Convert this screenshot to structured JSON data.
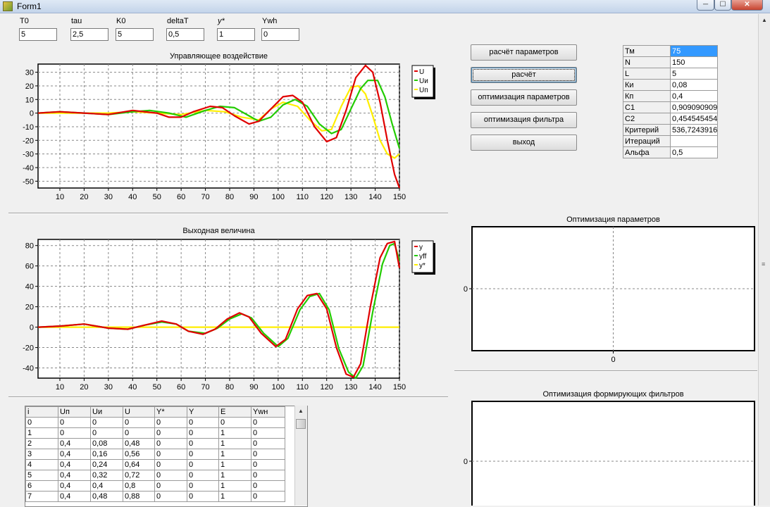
{
  "window": {
    "title": "Form1",
    "min": "─",
    "max": "☐",
    "close": "✕"
  },
  "params": [
    {
      "label": "T0",
      "value": "5"
    },
    {
      "label": "tau",
      "value": "2,5"
    },
    {
      "label": "K0",
      "value": "5"
    },
    {
      "label": "deltaT",
      "value": "0,5"
    },
    {
      "label": "y*",
      "value": "1"
    },
    {
      "label": "Ywh",
      "value": "0"
    }
  ],
  "buttons": {
    "calc_params": "расчёт параметров",
    "calc": "расчёт",
    "optimize_params": "оптимизация параметров",
    "optimize_filter": "оптимизация фильтра",
    "exit": "выход"
  },
  "param_table": [
    {
      "key": "Тм",
      "value": "75"
    },
    {
      "key": "N",
      "value": "150"
    },
    {
      "key": "L",
      "value": "5"
    },
    {
      "key": "Ки",
      "value": "0,08"
    },
    {
      "key": "Кп",
      "value": "0,4"
    },
    {
      "key": "C1",
      "value": "0,909090909"
    },
    {
      "key": "C2",
      "value": "0,454545454"
    },
    {
      "key": "Критерий",
      "value": "536,7243916"
    },
    {
      "key": "Итераций",
      "value": ""
    },
    {
      "key": "Альфа",
      "value": "0,5"
    }
  ],
  "grid": {
    "columns": [
      "i",
      "Uп",
      "Uи",
      "U",
      "Y*",
      "Y",
      "E",
      "Ywн"
    ],
    "rows": [
      [
        "0",
        "0",
        "0",
        "0",
        "0",
        "0",
        "0",
        "0"
      ],
      [
        "1",
        "0",
        "0",
        "0",
        "0",
        "0",
        "1",
        "0"
      ],
      [
        "2",
        "0,4",
        "0,08",
        "0,48",
        "0",
        "0",
        "1",
        "0"
      ],
      [
        "3",
        "0,4",
        "0,16",
        "0,56",
        "0",
        "0",
        "1",
        "0"
      ],
      [
        "4",
        "0,4",
        "0,24",
        "0,64",
        "0",
        "0",
        "1",
        "0"
      ],
      [
        "5",
        "0,4",
        "0,32",
        "0,72",
        "0",
        "0",
        "1",
        "0"
      ],
      [
        "6",
        "0,4",
        "0,4",
        "0,8",
        "0",
        "0",
        "1",
        "0"
      ],
      [
        "7",
        "0,4",
        "0,48",
        "0,88",
        "0",
        "0",
        "1",
        "0"
      ]
    ]
  },
  "chart_data": [
    {
      "type": "line",
      "title": "Управляющее воздействие",
      "xlim": [
        1,
        150
      ],
      "ylim": [
        -55,
        36
      ],
      "xticks": [
        10,
        20,
        30,
        40,
        50,
        60,
        70,
        80,
        90,
        100,
        110,
        120,
        130,
        140,
        150
      ],
      "yticks": [
        30,
        20,
        10,
        0,
        -10,
        -20,
        -30,
        -40,
        -50
      ],
      "grid": true,
      "legend": "top-right",
      "series": [
        {
          "name": "U",
          "color": "#e00000",
          "x": [
            1,
            5,
            10,
            20,
            30,
            40,
            50,
            55,
            60,
            65,
            72,
            77,
            82,
            88,
            92,
            97,
            102,
            106,
            110,
            115,
            120,
            124,
            128,
            132,
            136,
            139,
            142,
            145,
            148,
            150
          ],
          "y": [
            0,
            0.5,
            1,
            0,
            -1,
            2,
            0,
            -3,
            -3,
            1,
            5,
            4,
            -2,
            -8,
            -6,
            3,
            12,
            13,
            8,
            -10,
            -21,
            -18,
            2,
            26,
            35,
            30,
            8,
            -20,
            -45,
            -55
          ]
        },
        {
          "name": "Uи",
          "color": "#22cc00",
          "x": [
            1,
            5,
            10,
            20,
            30,
            40,
            47,
            55,
            62,
            70,
            76,
            82,
            88,
            92,
            97,
            102,
            107,
            112,
            117,
            122,
            126,
            130,
            134,
            137,
            141,
            144,
            147,
            150
          ],
          "y": [
            0,
            0.5,
            1,
            0,
            -1,
            1,
            2,
            0,
            -3,
            2,
            5,
            4,
            -2,
            -6,
            -3,
            6,
            10,
            5,
            -8,
            -15,
            -12,
            3,
            18,
            24,
            24,
            12,
            -8,
            -26
          ]
        },
        {
          "name": "Uп",
          "color": "#ffee00",
          "x": [
            1,
            10,
            20,
            30,
            40,
            50,
            60,
            70,
            78,
            85,
            92,
            97,
            102,
            108,
            113,
            118,
            122,
            126,
            130,
            133,
            136,
            139,
            142,
            145,
            148,
            150
          ],
          "y": [
            0,
            0,
            0,
            0,
            1,
            0,
            -1,
            2,
            1,
            -3,
            -5,
            3,
            8,
            5,
            -5,
            -13,
            -12,
            5,
            19,
            20,
            14,
            -2,
            -20,
            -30,
            -33,
            -30
          ]
        }
      ]
    },
    {
      "type": "line",
      "title": "Выходная величина",
      "xlim": [
        1,
        150
      ],
      "ylim": [
        -50,
        86
      ],
      "xticks": [
        10,
        20,
        30,
        40,
        50,
        60,
        70,
        80,
        90,
        100,
        110,
        120,
        130,
        140,
        150
      ],
      "yticks": [
        80,
        60,
        40,
        20,
        0,
        -20,
        -40
      ],
      "grid": true,
      "legend": "top-right",
      "series": [
        {
          "name": "y",
          "color": "#e00000",
          "x": [
            1,
            10,
            20,
            30,
            38,
            45,
            52,
            58,
            63,
            69,
            74,
            79,
            84,
            88,
            93,
            99,
            103,
            108,
            112,
            116,
            120,
            124,
            128,
            131,
            134,
            138,
            142,
            145,
            148,
            150
          ],
          "y": [
            0,
            1,
            3,
            -1,
            -2,
            2,
            6,
            3,
            -4,
            -7,
            -2,
            8,
            14,
            10,
            -6,
            -19,
            -12,
            18,
            31,
            33,
            18,
            -20,
            -46,
            -49,
            -36,
            20,
            68,
            82,
            84,
            58
          ]
        },
        {
          "name": "yff",
          "color": "#22cc00",
          "x": [
            1,
            10,
            20,
            30,
            38,
            45,
            52,
            58,
            63,
            70,
            75,
            80,
            85,
            89,
            94,
            100,
            104,
            109,
            113,
            117,
            121,
            125,
            129,
            132,
            135,
            139,
            143,
            146,
            148,
            150
          ],
          "y": [
            0,
            1,
            3,
            -1,
            -2,
            2,
            5,
            3,
            -4,
            -6,
            -1,
            8,
            13,
            9,
            -6,
            -19,
            -11,
            17,
            30,
            33,
            17,
            -21,
            -44,
            -50,
            -38,
            15,
            62,
            80,
            82,
            65
          ]
        },
        {
          "name": "y*",
          "color": "#ffee00",
          "x": [
            1,
            150
          ],
          "y": [
            0,
            0
          ]
        }
      ]
    },
    {
      "type": "line",
      "title": "Оптимизация параметров",
      "xticks": [
        0
      ],
      "yticks": [
        0
      ],
      "grid": true,
      "series": []
    },
    {
      "type": "line",
      "title": "Оптимизация формирующих фильтров",
      "yticks": [
        0
      ],
      "grid": true,
      "series": []
    }
  ]
}
